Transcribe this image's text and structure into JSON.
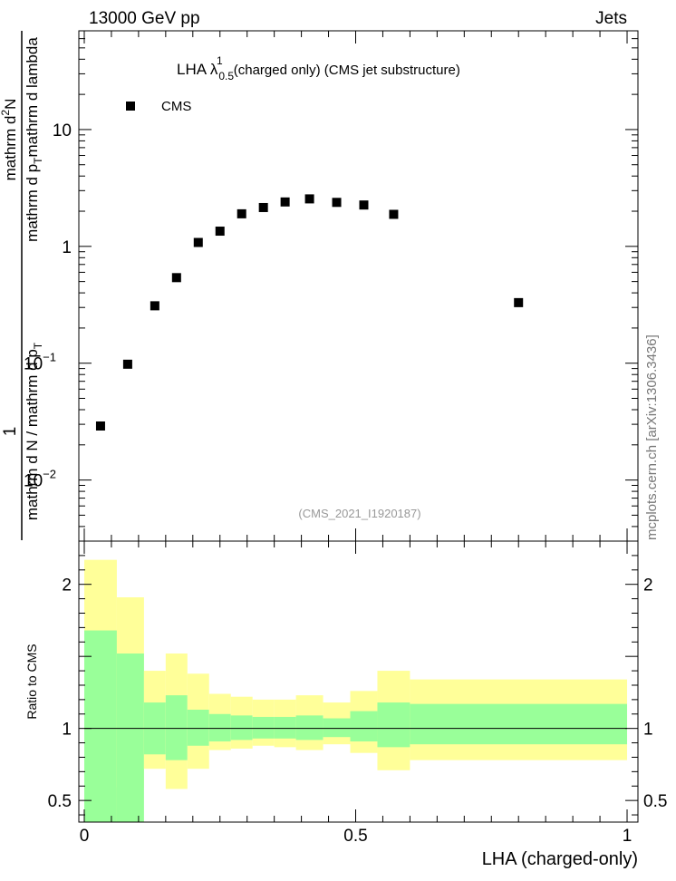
{
  "header": {
    "energy_label": "13000 GeV pp",
    "process_label": "Jets"
  },
  "side_label": "mcplots.cern.ch [arXiv:1306.3436]",
  "watermark": "(CMS_2021_I1920187)",
  "colors": {
    "band_inner": "#99ff99",
    "band_outer": "#ffff99",
    "marker": "#000000",
    "frame": "#000000"
  },
  "chart_data": [
    {
      "type": "scatter",
      "title": {
        "main": "LHA λ",
        "sup": "1",
        "sub": "0.5",
        "rest": "(charged only) (CMS jet substructure)"
      },
      "ylabel": {
        "numerator_line1": "1",
        "numerator_line2": "mathrm d N / mathrm d p",
        "numerator_line2_sub": "T",
        "denominator_line1": "mathrm d",
        "denominator_line1_sup": "2",
        "denominator_line1_rest": "N",
        "denominator_line2": "mathrm d p",
        "denominator_line2_sub": "T",
        "denominator_line2_rest": "mathrm d lambda"
      },
      "yscale": "log",
      "ylim": [
        0.003,
        70
      ],
      "xlim": [
        -0.01,
        1.02
      ],
      "y_ticks": [
        {
          "value": 0.01,
          "label": "10",
          "sup": "−2"
        },
        {
          "value": 0.1,
          "label": "10",
          "sup": "−1"
        },
        {
          "value": 1,
          "label": "1",
          "sup": ""
        },
        {
          "value": 10,
          "label": "10",
          "sup": ""
        }
      ],
      "legend": {
        "placement": "top-left",
        "entries": [
          {
            "name": "CMS",
            "marker": "square"
          }
        ]
      },
      "series": [
        {
          "name": "CMS",
          "x": [
            0.03,
            0.08,
            0.13,
            0.17,
            0.21,
            0.25,
            0.29,
            0.33,
            0.37,
            0.415,
            0.465,
            0.515,
            0.57,
            0.8
          ],
          "y": [
            0.029,
            0.098,
            0.31,
            0.54,
            1.08,
            1.35,
            1.9,
            2.15,
            2.4,
            2.55,
            2.38,
            2.26,
            1.88,
            0.33
          ]
        }
      ]
    },
    {
      "type": "area",
      "ylabel": "Ratio to CMS",
      "xlabel": "LHA (charged-only)",
      "xlim": [
        -0.01,
        1.02
      ],
      "ylim": [
        0.35,
        2.3
      ],
      "x_ticks": [
        {
          "value": 0,
          "label": "0"
        },
        {
          "value": 0.5,
          "label": "0.5"
        },
        {
          "value": 1,
          "label": "1"
        }
      ],
      "y_ticks": [
        {
          "value": 0.5,
          "label": "0.5"
        },
        {
          "value": 1,
          "label": "1"
        },
        {
          "value": 2,
          "label": "2"
        }
      ],
      "reference_line": 1,
      "bins": [
        {
          "lo": 0.0,
          "hi": 0.06,
          "inner": [
            0.35,
            1.68
          ],
          "outer": [
            0.35,
            2.17
          ]
        },
        {
          "lo": 0.06,
          "hi": 0.11,
          "inner": [
            0.35,
            1.52
          ],
          "outer": [
            0.59,
            1.91
          ]
        },
        {
          "lo": 0.11,
          "hi": 0.15,
          "inner": [
            0.82,
            1.18
          ],
          "outer": [
            0.72,
            1.4
          ]
        },
        {
          "lo": 0.15,
          "hi": 0.19,
          "inner": [
            0.78,
            1.23
          ],
          "outer": [
            0.58,
            1.52
          ]
        },
        {
          "lo": 0.19,
          "hi": 0.23,
          "inner": [
            0.88,
            1.13
          ],
          "outer": [
            0.72,
            1.38
          ]
        },
        {
          "lo": 0.23,
          "hi": 0.27,
          "inner": [
            0.91,
            1.1
          ],
          "outer": [
            0.85,
            1.24
          ]
        },
        {
          "lo": 0.27,
          "hi": 0.31,
          "inner": [
            0.92,
            1.09
          ],
          "outer": [
            0.86,
            1.22
          ]
        },
        {
          "lo": 0.31,
          "hi": 0.35,
          "inner": [
            0.93,
            1.08
          ],
          "outer": [
            0.88,
            1.2
          ]
        },
        {
          "lo": 0.35,
          "hi": 0.39,
          "inner": [
            0.93,
            1.08
          ],
          "outer": [
            0.87,
            1.2
          ]
        },
        {
          "lo": 0.39,
          "hi": 0.44,
          "inner": [
            0.92,
            1.09
          ],
          "outer": [
            0.85,
            1.23
          ]
        },
        {
          "lo": 0.44,
          "hi": 0.49,
          "inner": [
            0.94,
            1.07
          ],
          "outer": [
            0.89,
            1.18
          ]
        },
        {
          "lo": 0.49,
          "hi": 0.54,
          "inner": [
            0.91,
            1.12
          ],
          "outer": [
            0.83,
            1.26
          ]
        },
        {
          "lo": 0.54,
          "hi": 0.6,
          "inner": [
            0.87,
            1.18
          ],
          "outer": [
            0.71,
            1.4
          ]
        },
        {
          "lo": 0.6,
          "hi": 1.0,
          "inner": [
            0.89,
            1.17
          ],
          "outer": [
            0.78,
            1.34
          ]
        }
      ]
    }
  ]
}
